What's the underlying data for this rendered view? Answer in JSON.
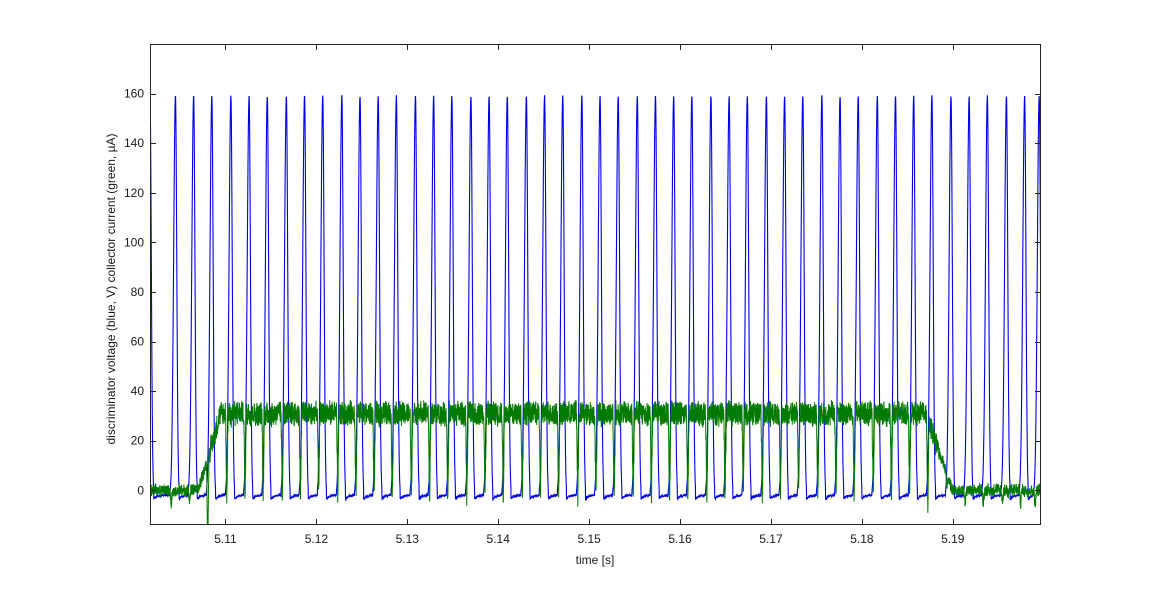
{
  "chart_data": {
    "type": "line",
    "title": "",
    "xlabel": "time [s]",
    "ylabel": "discriminator voltage (blue, V) collector current (green, µA)",
    "xlim": [
      5.1017,
      5.1997
    ],
    "ylim": [
      -14,
      180
    ],
    "x_ticks": [
      5.11,
      5.12,
      5.13,
      5.14,
      5.15,
      5.16,
      5.17,
      5.18,
      5.19
    ],
    "x_tick_labels": [
      "5.11",
      "5.12",
      "5.13",
      "5.14",
      "5.15",
      "5.16",
      "5.17",
      "5.18",
      "5.19"
    ],
    "y_ticks": [
      0,
      20,
      40,
      60,
      80,
      100,
      120,
      140,
      160
    ],
    "y_tick_labels": [
      "0",
      "20",
      "40",
      "60",
      "80",
      "100",
      "120",
      "140",
      "160"
    ],
    "grid": false,
    "legend": "none",
    "series": [
      {
        "color": "#0000e6",
        "pulse_period_s": 0.00203,
        "first_pulse_peak_s": 5.1017,
        "peak_value": 159,
        "baseline_value": -2,
        "pulse_peaks_s": [
          5.1017,
          5.1045,
          5.1065,
          5.1085,
          5.1106,
          5.1126,
          5.1146,
          5.1167,
          5.1187,
          5.1207,
          5.1228,
          5.1248,
          5.1268,
          5.1288,
          5.1309,
          5.1329,
          5.1349,
          5.137,
          5.139,
          5.141,
          5.1431,
          5.1451,
          5.1471,
          5.1492,
          5.1512,
          5.1532,
          5.1553,
          5.1573,
          5.1593,
          5.1613,
          5.1634,
          5.1654,
          5.1674,
          5.1695,
          5.1715,
          5.1735,
          5.1756,
          5.1776,
          5.1796,
          5.1817,
          5.1837,
          5.1857,
          5.1877,
          5.1898,
          5.1918,
          5.1938,
          5.1959,
          5.1979,
          5.1995
        ]
      },
      {
        "color": "#007a00",
        "baseline_value": 0,
        "plateau_value": 31,
        "noise_amplitude": 5,
        "rise_start_s": 5.107,
        "rise_end_s": 5.1095,
        "fall_start_s": 5.187,
        "fall_end_s": 5.19,
        "dips": "negative spikes aligned with each blue pulse rising edge, reaching about 0 to -8"
      }
    ]
  }
}
